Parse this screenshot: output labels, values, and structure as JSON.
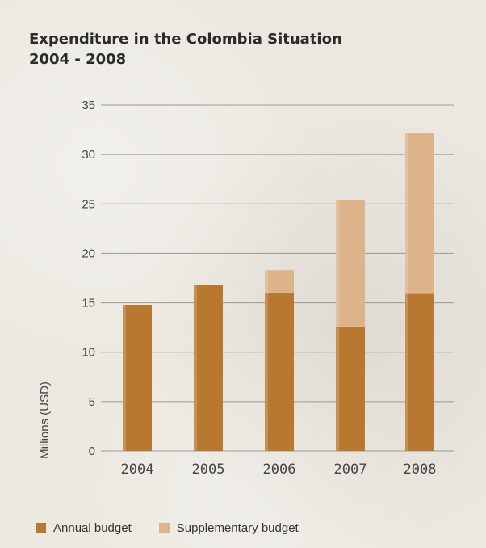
{
  "chart_data": {
    "type": "bar",
    "stacked": true,
    "title": "Expenditure in the Colombia Situation",
    "subtitle": "2004 - 2008",
    "ylabel": "Millions (USD)",
    "xlabel": "",
    "ylim": [
      0,
      35
    ],
    "yticks": [
      0,
      5,
      10,
      15,
      20,
      25,
      30,
      35
    ],
    "grid": true,
    "legend_position": "bottom-left",
    "categories": [
      "2004",
      "2005",
      "2006",
      "2007",
      "2008"
    ],
    "series": [
      {
        "name": "Annual budget",
        "values": [
          14.8,
          16.8,
          16.0,
          12.6,
          15.9
        ],
        "color": "#b8782f"
      },
      {
        "name": "Supplementary budget",
        "values": [
          0,
          0,
          2.3,
          12.8,
          16.3
        ],
        "color": "#ddb489"
      }
    ]
  }
}
